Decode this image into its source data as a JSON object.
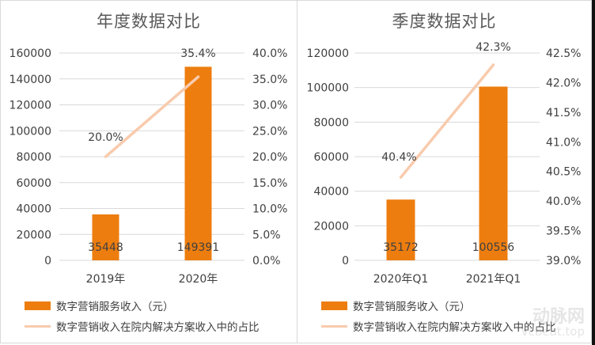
{
  "colors": {
    "bar": "#ED7D0F",
    "line": "#F8CBAD",
    "grid": "#d9d9d9",
    "text": "#404040",
    "title": "#595959"
  },
  "chart_data": [
    {
      "type": "bar+line",
      "title": "年度数据对比",
      "categories": [
        "2019年",
        "2020年"
      ],
      "series": [
        {
          "name": "数字营销服务收入（元）",
          "type": "bar",
          "axis": "left",
          "values": [
            35448,
            149391
          ],
          "labels": [
            "35448",
            "149391"
          ]
        },
        {
          "name": "数字营销收入在院内解决方案收入中的占比",
          "type": "line",
          "axis": "right",
          "values": [
            20.0,
            35.4
          ],
          "labels": [
            "20.0%",
            "35.4%"
          ]
        }
      ],
      "y_left": {
        "min": 0,
        "max": 160000,
        "ticks": [
          "0",
          "20000",
          "40000",
          "60000",
          "80000",
          "100000",
          "120000",
          "140000",
          "160000"
        ]
      },
      "y_right": {
        "min": 0,
        "max": 40,
        "ticks": [
          "0.0%",
          "5.0%",
          "10.0%",
          "15.0%",
          "20.0%",
          "25.0%",
          "30.0%",
          "35.0%",
          "40.0%"
        ]
      },
      "grid": true,
      "legend_position": "bottom"
    },
    {
      "type": "bar+line",
      "title": "季度数据对比",
      "categories": [
        "2020年Q1",
        "2021年Q1"
      ],
      "series": [
        {
          "name": "数字营销服务收入（元）",
          "type": "bar",
          "axis": "left",
          "values": [
            35172,
            100556
          ],
          "labels": [
            "35172",
            "100556"
          ]
        },
        {
          "name": "数字营销收入在院内解决方案收入中的占比",
          "type": "line",
          "axis": "right",
          "values": [
            40.4,
            42.3
          ],
          "labels": [
            "40.4%",
            "42.3%"
          ]
        }
      ],
      "y_left": {
        "min": 0,
        "max": 120000,
        "ticks": [
          "0",
          "20000",
          "40000",
          "60000",
          "80000",
          "100000",
          "120000"
        ]
      },
      "y_right": {
        "min": 39.0,
        "max": 42.5,
        "ticks": [
          "39.0%",
          "39.5%",
          "40.0%",
          "40.5%",
          "41.0%",
          "41.5%",
          "42.0%",
          "42.5%"
        ]
      },
      "grid": true,
      "legend_position": "bottom"
    }
  ],
  "legend": {
    "bar_label": "数字营销服务收入（元）",
    "line_label": "数字营销收入在院内解决方案收入中的占比"
  },
  "watermark": {
    "brand": "动脉网",
    "domain": "vcbeat.top"
  }
}
